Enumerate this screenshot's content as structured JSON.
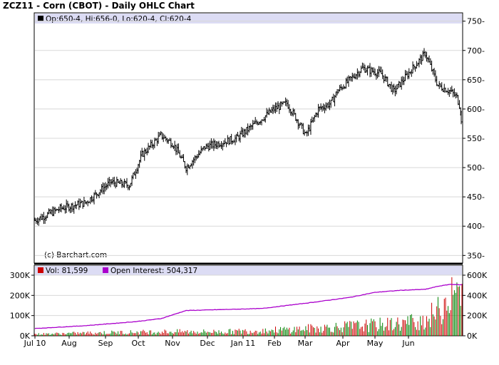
{
  "title": "ZCZ11 - Corn (CBOT) - Daily OHLC Chart",
  "ohlc_legend": "Op:650-4, Hi:656-0, Lo:620-4, Cl:620-4",
  "copyright": "(c) Barchart.com",
  "vol_legend": "Vol: 81,599",
  "oi_legend": "Open Interest: 504,317",
  "colors": {
    "band": "#dcdcf4",
    "price": "#000000",
    "vol_up": "#008000",
    "vol_down": "#cc0000",
    "open_interest": "#aa00cc"
  },
  "chart_data": [
    {
      "type": "ohlc",
      "x_labels": [
        "Jul 10",
        "Aug",
        "Sep",
        "Oct",
        "Nov",
        "Dec",
        "Jan 11",
        "Feb",
        "Mar",
        "Apr",
        "May",
        "Jun"
      ],
      "y_ticks": [
        "750-",
        "700-",
        "650-",
        "600-",
        "550-",
        "500-",
        "450-",
        "400-",
        "350-"
      ],
      "ylim": [
        337,
        763
      ],
      "grid": true,
      "last_bar": {
        "open": 650.5,
        "high": 656.0,
        "low": 620.5,
        "close": 620.5
      },
      "trend_anchors": [
        [
          0,
          410
        ],
        [
          20,
          430
        ],
        [
          40,
          440
        ],
        [
          60,
          475
        ],
        [
          75,
          470
        ],
        [
          85,
          522
        ],
        [
          100,
          555
        ],
        [
          110,
          540
        ],
        [
          120,
          500
        ],
        [
          135,
          535
        ],
        [
          160,
          550
        ],
        [
          175,
          575
        ],
        [
          190,
          600
        ],
        [
          200,
          610
        ],
        [
          210,
          575
        ],
        [
          215,
          555
        ],
        [
          225,
          600
        ],
        [
          235,
          610
        ],
        [
          240,
          630
        ],
        [
          260,
          670
        ],
        [
          275,
          660
        ],
        [
          285,
          630
        ],
        [
          300,
          670
        ],
        [
          310,
          695
        ],
        [
          320,
          640
        ],
        [
          330,
          630
        ],
        [
          335,
          620
        ],
        [
          338,
          600
        ]
      ],
      "gap_bar": {
        "index": 339,
        "open": 590,
        "high": 597,
        "low": 574,
        "close": 578
      }
    },
    {
      "type": "bar+line",
      "left_ticks": [
        "300K",
        "200K",
        "100K",
        "0K"
      ],
      "right_ticks": [
        "600K",
        "400K",
        "200K",
        "0K"
      ],
      "volume_ylim": [
        0,
        300000
      ],
      "open_interest_ylim": [
        0,
        600000
      ],
      "volume_anchors": [
        [
          0,
          8000
        ],
        [
          50,
          15000
        ],
        [
          100,
          20000
        ],
        [
          150,
          20000
        ],
        [
          200,
          30000
        ],
        [
          230,
          40000
        ],
        [
          260,
          50000
        ],
        [
          290,
          60000
        ],
        [
          310,
          80000
        ],
        [
          320,
          120000
        ],
        [
          330,
          170000
        ],
        [
          338,
          130000
        ]
      ],
      "open_interest_anchors": [
        [
          0,
          72000
        ],
        [
          40,
          100000
        ],
        [
          80,
          140000
        ],
        [
          100,
          170000
        ],
        [
          120,
          250000
        ],
        [
          150,
          260000
        ],
        [
          180,
          270000
        ],
        [
          200,
          300000
        ],
        [
          220,
          330000
        ],
        [
          250,
          380000
        ],
        [
          270,
          430000
        ],
        [
          290,
          450000
        ],
        [
          310,
          460000
        ],
        [
          320,
          490000
        ],
        [
          330,
          510000
        ],
        [
          338,
          504317
        ]
      ]
    }
  ]
}
